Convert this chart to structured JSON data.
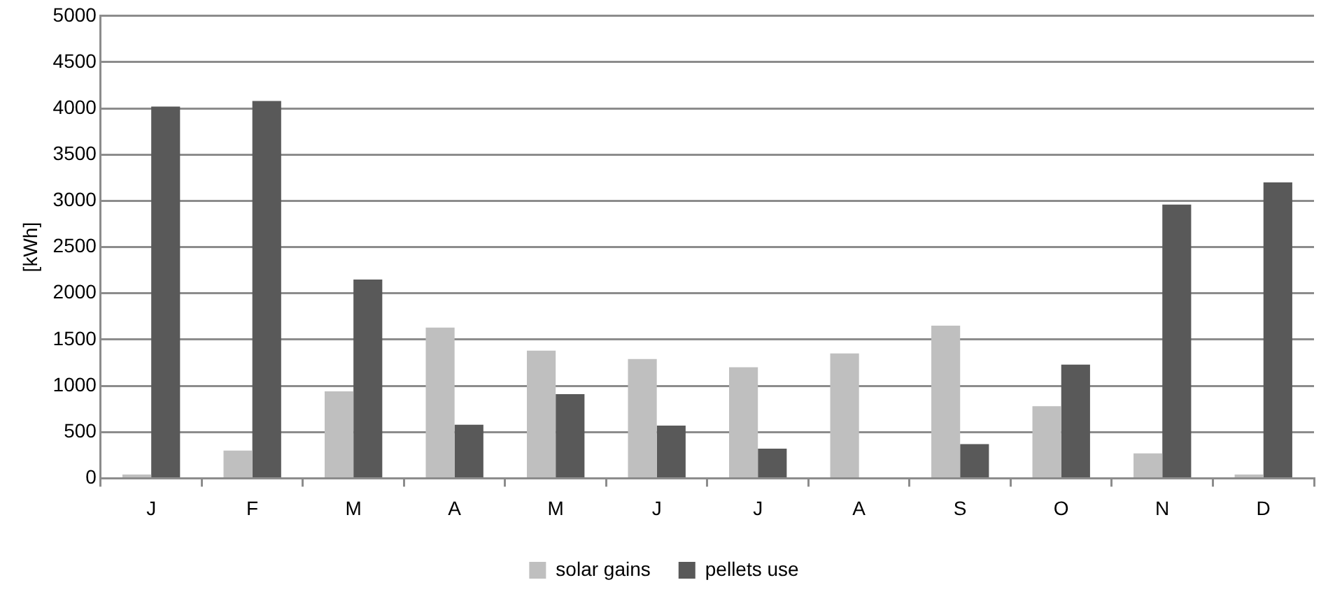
{
  "chart_data": {
    "type": "bar",
    "ylabel": "[kWh]",
    "categories": [
      "J",
      "F",
      "M",
      "A",
      "M",
      "J",
      "J",
      "A",
      "S",
      "O",
      "N",
      "D"
    ],
    "series": [
      {
        "name": "solar gains",
        "color": "#bfbfbf",
        "values": [
          40,
          300,
          940,
          1630,
          1380,
          1290,
          1200,
          1350,
          1650,
          780,
          270,
          40
        ]
      },
      {
        "name": "pellets use",
        "color": "#595959",
        "values": [
          4020,
          4080,
          2150,
          580,
          910,
          570,
          320,
          0,
          370,
          1230,
          2960,
          3200
        ]
      }
    ],
    "ylim": [
      0,
      5000
    ],
    "yticks": [
      0,
      500,
      1000,
      1500,
      2000,
      2500,
      3000,
      3500,
      4000,
      4500,
      5000
    ],
    "grid": "y",
    "legend": "bottom"
  }
}
